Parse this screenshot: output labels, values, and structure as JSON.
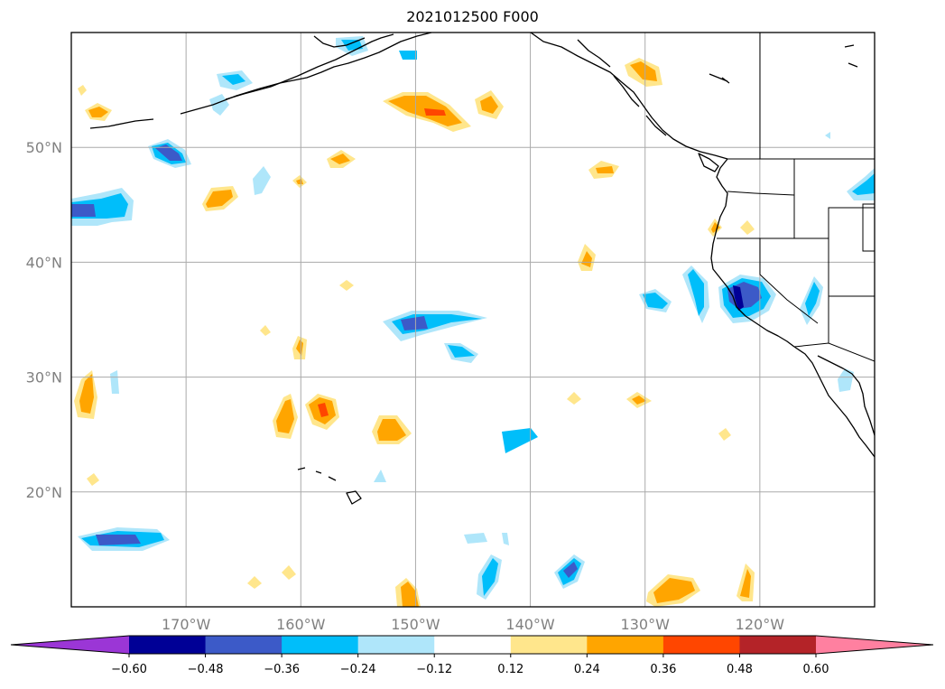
{
  "title": "2021012500 F000",
  "map": {
    "region": "North-East Pacific and western North America",
    "projection": "cylindrical (lat/lon)",
    "lon_range": [
      -180,
      -110
    ],
    "lat_range": [
      10,
      60
    ],
    "lat_gridlines": [
      20,
      30,
      40,
      50
    ],
    "lon_gridlines": [
      -170,
      -160,
      -150,
      -140,
      -130,
      -120
    ],
    "lat_labels": [
      "20°N",
      "30°N",
      "40°N",
      "50°N"
    ],
    "lon_labels": [
      "170°W",
      "160°W",
      "150°W",
      "140°W",
      "130°W",
      "120°W"
    ],
    "grid": true,
    "coastlines": true,
    "state_borders": true
  },
  "colorbar": {
    "orientation": "horizontal",
    "extend": "both",
    "levels": [
      -0.72,
      -0.6,
      -0.48,
      -0.36,
      -0.24,
      -0.12,
      0.12,
      0.24,
      0.36,
      0.48,
      0.6,
      0.72
    ],
    "tick_labels": [
      "−0.60",
      "−0.48",
      "−0.36",
      "−0.24",
      "−0.12",
      "0.12",
      "0.24",
      "0.36",
      "0.48",
      "0.60"
    ],
    "colors": [
      "#9b36d6",
      "#000096",
      "#3c5ac8",
      "#00befa",
      "#afe6fa",
      "#ffffff",
      "#ffe68c",
      "#ffa500",
      "#ff4600",
      "#b42328",
      "#ff80a0"
    ]
  }
}
